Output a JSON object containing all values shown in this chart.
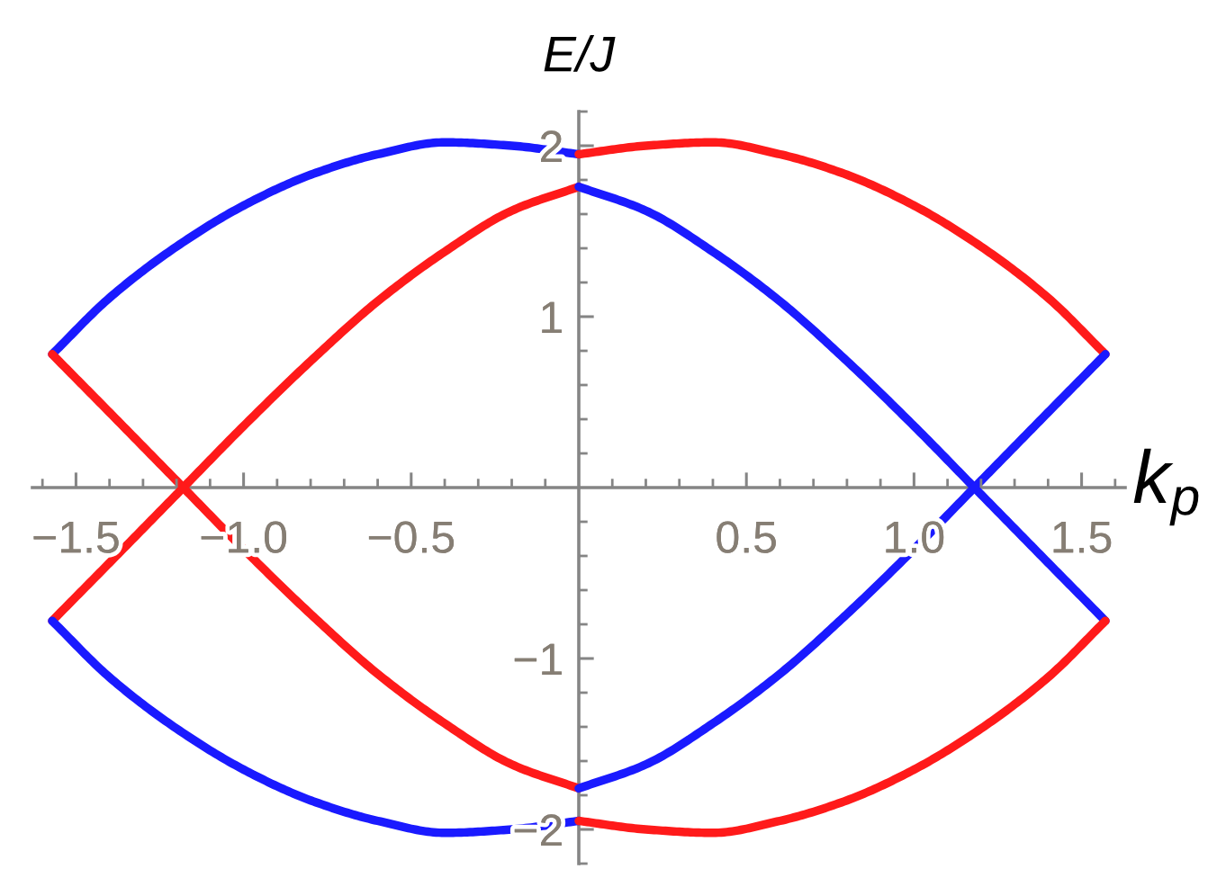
{
  "chart_data": {
    "type": "line",
    "xlabel": "k$_{p}$",
    "ylabel": "E/J",
    "xlim": [
      -1.63,
      1.63
    ],
    "ylim": [
      -2.2,
      2.2
    ],
    "xticks": [
      {
        "value": -1.6,
        "label": null
      },
      {
        "value": -1.5,
        "label": "−1.5"
      },
      {
        "value": -1.4,
        "label": null
      },
      {
        "value": -1.3,
        "label": null
      },
      {
        "value": -1.2,
        "label": null
      },
      {
        "value": -1.1,
        "label": null
      },
      {
        "value": -1.0,
        "label": "−1.0"
      },
      {
        "value": -0.9,
        "label": null
      },
      {
        "value": -0.8,
        "label": null
      },
      {
        "value": -0.7,
        "label": null
      },
      {
        "value": -0.6,
        "label": null
      },
      {
        "value": -0.5,
        "label": "−0.5"
      },
      {
        "value": -0.4,
        "label": null
      },
      {
        "value": -0.3,
        "label": null
      },
      {
        "value": -0.2,
        "label": null
      },
      {
        "value": -0.1,
        "label": null
      },
      {
        "value": 0.1,
        "label": null
      },
      {
        "value": 0.2,
        "label": null
      },
      {
        "value": 0.3,
        "label": null
      },
      {
        "value": 0.4,
        "label": null
      },
      {
        "value": 0.5,
        "label": "0.5"
      },
      {
        "value": 0.6,
        "label": null
      },
      {
        "value": 0.7,
        "label": null
      },
      {
        "value": 0.8,
        "label": null
      },
      {
        "value": 0.9,
        "label": null
      },
      {
        "value": 1.0,
        "label": "1.0"
      },
      {
        "value": 1.1,
        "label": null
      },
      {
        "value": 1.2,
        "label": null
      },
      {
        "value": 1.3,
        "label": null
      },
      {
        "value": 1.4,
        "label": null
      },
      {
        "value": 1.5,
        "label": "1.5"
      },
      {
        "value": 1.6,
        "label": null
      }
    ],
    "yticks": [
      {
        "value": -2.2,
        "label": null
      },
      {
        "value": -2,
        "label": "−2"
      },
      {
        "value": -1.8,
        "label": null
      },
      {
        "value": -1.6,
        "label": null
      },
      {
        "value": -1.4,
        "label": null
      },
      {
        "value": -1.2,
        "label": null
      },
      {
        "value": -1,
        "label": "−1"
      },
      {
        "value": -0.8,
        "label": null
      },
      {
        "value": -0.6,
        "label": null
      },
      {
        "value": -0.4,
        "label": null
      },
      {
        "value": -0.2,
        "label": null
      },
      {
        "value": 0.2,
        "label": null
      },
      {
        "value": 0.4,
        "label": null
      },
      {
        "value": 0.6,
        "label": null
      },
      {
        "value": 0.8,
        "label": null
      },
      {
        "value": 1,
        "label": "1"
      },
      {
        "value": 1.2,
        "label": null
      },
      {
        "value": 1.4,
        "label": null
      },
      {
        "value": 1.6,
        "label": null
      },
      {
        "value": 1.8,
        "label": null
      },
      {
        "value": 2,
        "label": "2"
      },
      {
        "value": 2.2,
        "label": null
      }
    ],
    "series": [
      {
        "color": "#1a1aff",
        "x": [
          -1.571,
          -1.4,
          -1.2,
          -1.0,
          -0.8,
          -0.6,
          -0.4,
          -0.2,
          0
        ],
        "values": [
          0.78,
          1.11,
          1.41,
          1.65,
          1.83,
          1.95,
          2.02,
          2.0,
          1.95
        ]
      },
      {
        "color": "#ff1a1a",
        "x": [
          0,
          0.2,
          0.4,
          0.6,
          0.8,
          1.0,
          1.2,
          1.4,
          1.571
        ],
        "values": [
          1.95,
          2.0,
          2.02,
          1.95,
          1.83,
          1.65,
          1.41,
          1.11,
          0.78
        ]
      },
      {
        "color": "#ff1a1a",
        "x": [
          -1.571,
          -1.4,
          -1.2,
          -1.0,
          -0.8,
          -0.6,
          -0.4,
          -0.2,
          0
        ],
        "values": [
          -0.78,
          -0.44,
          -0.04,
          0.36,
          0.74,
          1.09,
          1.38,
          1.62,
          1.76
        ]
      },
      {
        "color": "#1a1aff",
        "x": [
          0,
          0.2,
          0.4,
          0.6,
          0.8,
          1.0,
          1.2,
          1.4,
          1.571
        ],
        "values": [
          1.76,
          1.62,
          1.38,
          1.09,
          0.74,
          0.36,
          -0.04,
          -0.44,
          -0.78
        ]
      },
      {
        "color": "#ff1a1a",
        "x": [
          -1.571,
          -1.4,
          -1.2,
          -1.0,
          -0.8,
          -0.6,
          -0.4,
          -0.2,
          0
        ],
        "values": [
          0.78,
          0.44,
          0.04,
          -0.36,
          -0.74,
          -1.09,
          -1.38,
          -1.62,
          -1.76
        ]
      },
      {
        "color": "#1a1aff",
        "x": [
          0,
          0.2,
          0.4,
          0.6,
          0.8,
          1.0,
          1.2,
          1.4,
          1.571
        ],
        "values": [
          -1.76,
          -1.62,
          -1.38,
          -1.09,
          -0.74,
          -0.36,
          0.04,
          0.44,
          0.78
        ]
      },
      {
        "color": "#1a1aff",
        "x": [
          -1.571,
          -1.4,
          -1.2,
          -1.0,
          -0.8,
          -0.6,
          -0.4,
          -0.2,
          0
        ],
        "values": [
          -0.78,
          -1.11,
          -1.41,
          -1.65,
          -1.83,
          -1.95,
          -2.02,
          -2.0,
          -1.95
        ]
      },
      {
        "color": "#ff1a1a",
        "x": [
          0,
          0.2,
          0.4,
          0.6,
          0.8,
          1.0,
          1.2,
          1.4,
          1.571
        ],
        "values": [
          -1.95,
          -2.0,
          -2.02,
          -1.95,
          -1.83,
          -1.65,
          -1.41,
          -1.11,
          -0.78
        ]
      }
    ]
  }
}
